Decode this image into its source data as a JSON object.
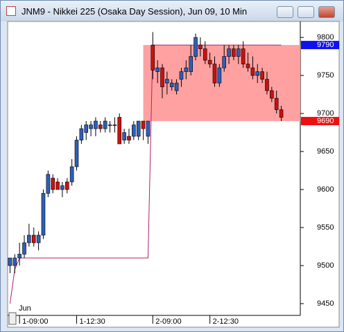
{
  "chart_data": {
    "type": "candlestick",
    "title": "JNM9 - Nikkei 225 (Osaka Day Session), Jun 09, 10 Min",
    "annotations": [
      "Jun"
    ],
    "x": [
      0,
      1,
      2,
      3,
      4,
      5,
      6,
      7,
      8,
      9,
      10,
      11,
      12,
      13,
      14,
      15,
      16,
      17,
      18,
      19,
      20,
      21,
      22,
      23,
      24,
      25,
      26,
      27,
      28,
      29,
      30,
      31,
      32,
      33,
      34,
      35,
      36,
      37,
      38,
      39,
      40,
      41,
      42,
      43,
      44,
      45,
      46,
      47,
      48,
      49,
      50,
      51,
      52,
      53,
      54,
      55,
      56,
      57
    ],
    "open": [
      9500,
      9500,
      9510,
      9515,
      9530,
      9540,
      9530,
      9540,
      9595,
      9615,
      9610,
      9600,
      9610,
      9610,
      9630,
      9665,
      9675,
      9680,
      9680,
      9685,
      9680,
      9685,
      9685,
      9695,
      9665,
      9670,
      9670,
      9670,
      9690,
      9670,
      9790,
      9755,
      9760,
      9740,
      9735,
      9730,
      9745,
      9755,
      9755,
      9775,
      9790,
      9785,
      9770,
      9765,
      9740,
      9760,
      9775,
      9785,
      9775,
      9785,
      9765,
      9760,
      9750,
      9755,
      9745,
      9730,
      9720,
      9705
    ],
    "high": [
      9510,
      9515,
      9530,
      9540,
      9555,
      9550,
      9545,
      9600,
      9625,
      9620,
      9615,
      9610,
      9615,
      9640,
      9670,
      9685,
      9690,
      9690,
      9695,
      9690,
      9695,
      9690,
      9695,
      9700,
      9680,
      9680,
      9690,
      9690,
      9690,
      9690,
      9807,
      9770,
      9765,
      9755,
      9745,
      9745,
      9760,
      9770,
      9790,
      9805,
      9800,
      9795,
      9780,
      9775,
      9765,
      9790,
      9790,
      9790,
      9790,
      9795,
      9780,
      9775,
      9765,
      9760,
      9755,
      9735,
      9730,
      9710
    ],
    "low": [
      9490,
      9490,
      9500,
      9510,
      9525,
      9525,
      9520,
      9535,
      9590,
      9595,
      9600,
      9590,
      9595,
      9605,
      9625,
      9660,
      9665,
      9670,
      9670,
      9675,
      9675,
      9675,
      9675,
      9660,
      9660,
      9660,
      9665,
      9665,
      9665,
      9660,
      9745,
      9740,
      9720,
      9725,
      9730,
      9725,
      9735,
      9745,
      9750,
      9770,
      9775,
      9765,
      9760,
      9735,
      9735,
      9755,
      9765,
      9770,
      9765,
      9760,
      9755,
      9745,
      9740,
      9740,
      9725,
      9715,
      9700,
      9690
    ],
    "close": [
      9510,
      9510,
      9515,
      9530,
      9540,
      9530,
      9540,
      9595,
      9620,
      9600,
      9600,
      9605,
      9600,
      9630,
      9665,
      9680,
      9685,
      9685,
      9690,
      9680,
      9690,
      9685,
      9685,
      9660,
      9675,
      9665,
      9685,
      9690,
      9680,
      9690,
      9757,
      9760,
      9735,
      9745,
      9740,
      9740,
      9755,
      9760,
      9775,
      9800,
      9785,
      9770,
      9765,
      9740,
      9760,
      9775,
      9785,
      9775,
      9785,
      9765,
      9760,
      9750,
      9755,
      9745,
      9730,
      9720,
      9705,
      9695
    ],
    "up_color": "#2f5fb8",
    "down_color": "#cc1111",
    "overlay": {
      "color": "#b0206a",
      "values": [
        9450,
        9495,
        9510,
        9510,
        9510,
        9510,
        9510,
        9510,
        9510,
        9510,
        9510,
        9510,
        9510,
        9510,
        9510,
        9510,
        9510,
        9510,
        9510,
        9510,
        9510,
        9510,
        9510,
        9510,
        9510,
        9510,
        9510,
        9510,
        9510,
        9510,
        9790,
        9790,
        9790,
        9790,
        9790,
        9790,
        9790,
        9790,
        9790,
        9790,
        9790,
        9790,
        9790,
        9790,
        9790,
        9790,
        9790,
        9790,
        9790,
        9790,
        9790,
        9790,
        9790,
        9790,
        9790,
        9790,
        9790,
        9790
      ]
    },
    "range_box_color": "#ff9c9c",
    "price_markers": [
      {
        "value": 9790,
        "color": "#1010ee"
      },
      {
        "value": 9690,
        "color": "#ee1010"
      }
    ],
    "xlim": [
      -0.5,
      61
    ],
    "xticks": [
      {
        "value": 2,
        "label": "1-09:00"
      },
      {
        "value": 14,
        "label": "1-12:30"
      },
      {
        "value": 30,
        "label": "2-09:00"
      },
      {
        "value": 42,
        "label": "2-12:30"
      }
    ],
    "ylim": [
      9434.5,
      9821
    ],
    "yticks": [
      9450,
      9500,
      9550,
      9600,
      9650,
      9700,
      9750,
      9800
    ]
  }
}
